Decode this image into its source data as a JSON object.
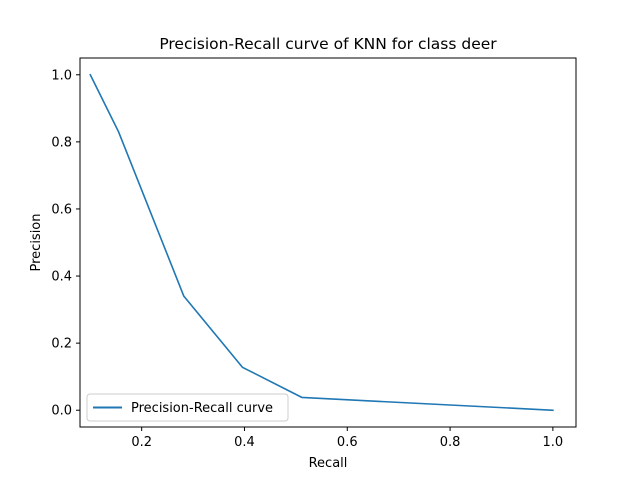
{
  "chart_data": {
    "type": "line",
    "title": "Precision-Recall curve of KNN for class deer",
    "xlabel": "Recall",
    "ylabel": "Precision",
    "xlim": [
      0.08,
      1.045
    ],
    "ylim": [
      -0.05,
      1.05
    ],
    "xticks": [
      0.2,
      0.4,
      0.6,
      0.8,
      1.0
    ],
    "xtick_labels": [
      "0.2",
      "0.4",
      "0.6",
      "0.8",
      "1.0"
    ],
    "yticks": [
      0.0,
      0.2,
      0.4,
      0.6,
      0.8,
      1.0
    ],
    "ytick_labels": [
      "0.0",
      "0.2",
      "0.4",
      "0.6",
      "0.8",
      "1.0"
    ],
    "grid": false,
    "legend_position": "lower-left",
    "series": [
      {
        "name": "Precision-Recall curve",
        "color": "#1f77b4",
        "x": [
          0.1,
          0.155,
          0.282,
          0.396,
          0.512,
          1.0
        ],
        "y": [
          1.0,
          0.83,
          0.34,
          0.128,
          0.038,
          0.0
        ]
      }
    ]
  }
}
